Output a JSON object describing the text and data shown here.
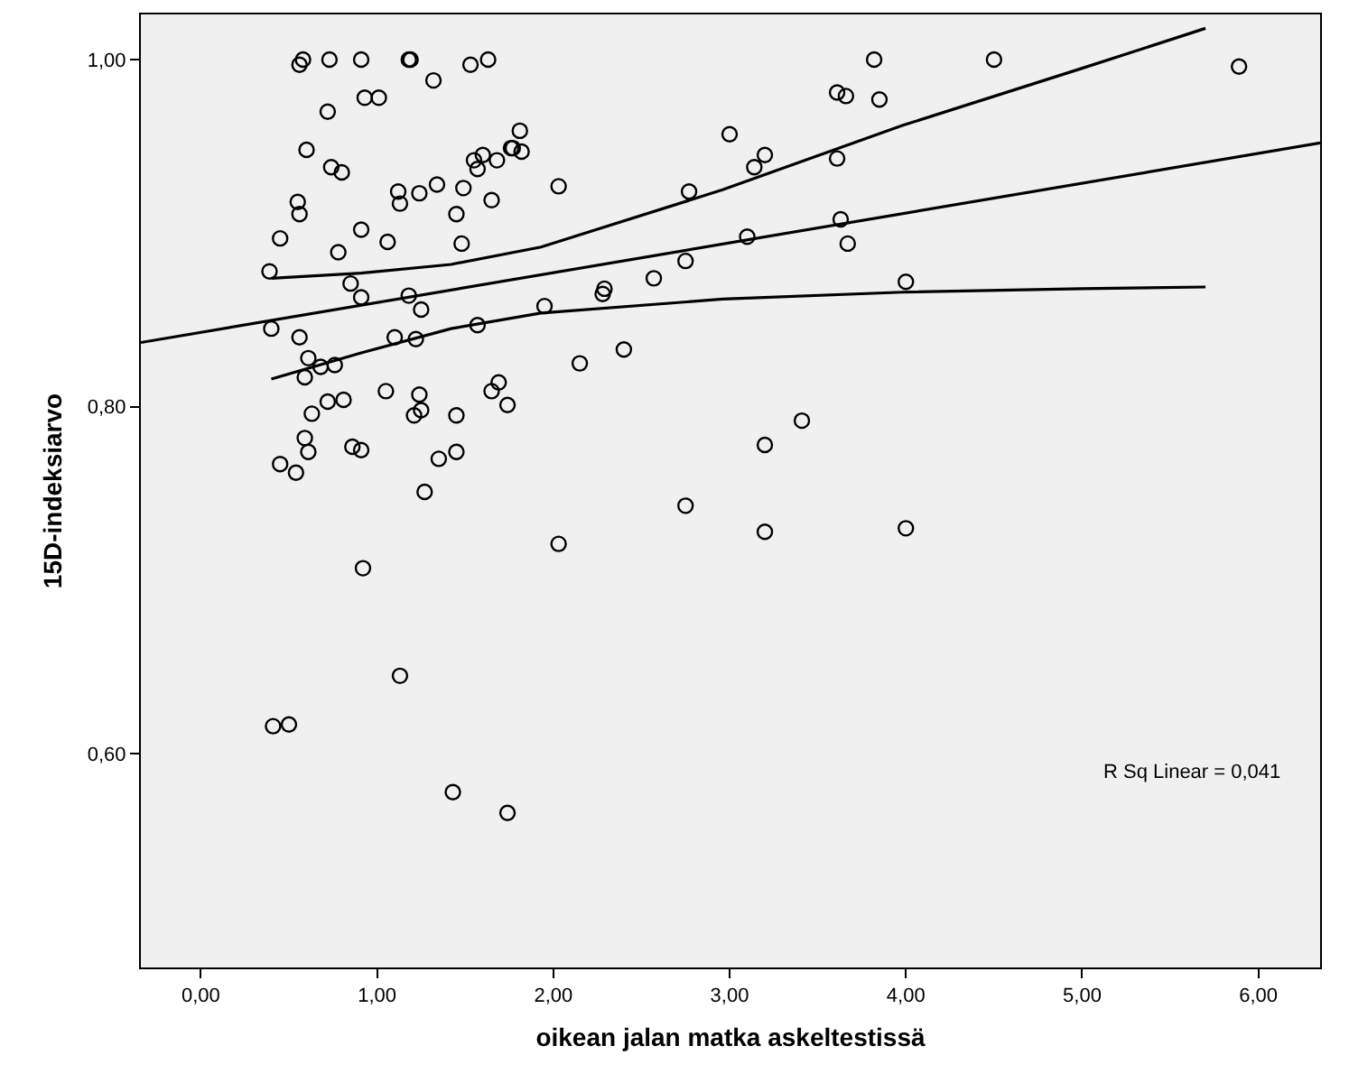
{
  "chart_data": {
    "type": "scatter",
    "xlabel": "oikean jalan matka askeltestissä",
    "ylabel": "15D-indeksiarvo",
    "annotations": [
      "R Sq Linear = 0,041"
    ],
    "xlim": [
      -0.34,
      6.35
    ],
    "ylim": [
      0.477,
      1.026
    ],
    "xticks": [
      {
        "value": 0,
        "label": "0,00"
      },
      {
        "value": 1,
        "label": "1,00"
      },
      {
        "value": 2,
        "label": "2,00"
      },
      {
        "value": 3,
        "label": "3,00"
      },
      {
        "value": 4,
        "label": "4,00"
      },
      {
        "value": 5,
        "label": "5,00"
      },
      {
        "value": 6,
        "label": "6,00"
      }
    ],
    "yticks": [
      {
        "value": 0.6,
        "label": "0,60"
      },
      {
        "value": 0.8,
        "label": "0,80"
      },
      {
        "value": 1.0,
        "label": "1,00"
      }
    ],
    "grid": false,
    "series": [
      {
        "color": "#000000",
        "marker": "circle",
        "x": [
          0.58,
          0.56,
          0.73,
          0.91,
          1.18,
          1.19,
          1.53,
          1.63,
          1.32,
          0.93,
          1.01,
          0.72,
          0.6,
          0.74,
          0.8,
          1.81,
          1.76,
          1.77,
          1.82,
          1.68,
          1.6,
          1.55,
          1.57,
          2.03,
          1.12,
          1.13,
          1.24,
          1.34,
          1.49,
          1.65,
          1.45,
          0.55,
          0.56,
          0.45,
          0.91,
          0.78,
          1.06,
          1.48,
          0.39,
          0.85,
          0.91,
          1.18,
          1.25,
          1.95,
          0.4,
          0.56,
          1.1,
          1.22,
          1.57,
          2.15,
          0.61,
          0.68,
          0.76,
          0.59,
          1.05,
          1.24,
          1.25,
          1.21,
          1.45,
          1.69,
          1.65,
          1.74,
          0.81,
          0.72,
          0.63,
          0.59,
          0.61,
          0.45,
          0.54,
          0.86,
          0.91,
          1.35,
          1.45,
          1.27,
          2.03,
          0.92,
          1.13,
          0.41,
          0.5,
          1.43,
          1.74,
          2.77,
          3.0,
          3.14,
          3.2,
          3.61,
          3.66,
          3.82,
          3.85,
          4.5,
          5.89,
          3.61,
          3.63,
          3.67,
          3.1,
          2.75,
          2.57,
          2.29,
          2.28,
          4.0,
          2.4,
          3.41,
          3.2,
          2.75,
          3.2,
          4.0
        ],
        "values": [
          1.0,
          0.997,
          1.0,
          1.0,
          1.0,
          1.0,
          0.997,
          1.0,
          0.988,
          0.978,
          0.978,
          0.97,
          0.948,
          0.938,
          0.935,
          0.959,
          0.949,
          0.949,
          0.947,
          0.942,
          0.945,
          0.942,
          0.937,
          0.927,
          0.924,
          0.917,
          0.923,
          0.928,
          0.926,
          0.919,
          0.911,
          0.918,
          0.911,
          0.897,
          0.902,
          0.889,
          0.895,
          0.894,
          0.878,
          0.871,
          0.863,
          0.864,
          0.856,
          0.858,
          0.845,
          0.84,
          0.84,
          0.839,
          0.847,
          0.825,
          0.828,
          0.823,
          0.824,
          0.817,
          0.809,
          0.807,
          0.798,
          0.795,
          0.795,
          0.814,
          0.809,
          0.801,
          0.804,
          0.803,
          0.796,
          0.782,
          0.774,
          0.767,
          0.762,
          0.777,
          0.775,
          0.77,
          0.774,
          0.751,
          0.721,
          0.707,
          0.645,
          0.616,
          0.617,
          0.578,
          0.566,
          0.924,
          0.957,
          0.938,
          0.945,
          0.981,
          0.979,
          1.0,
          0.977,
          1.0,
          0.996,
          0.943,
          0.908,
          0.894,
          0.898,
          0.884,
          0.874,
          0.868,
          0.865,
          0.872,
          0.833,
          0.792,
          0.778,
          0.743,
          0.728,
          0.73
        ]
      },
      {
        "type": "line",
        "color": "#000000",
        "marker": "none",
        "x": [
          -0.34,
          6.35
        ],
        "values": [
          0.837,
          0.952
        ]
      },
      {
        "type": "line",
        "color": "#000000",
        "marker": "none",
        "x": [
          0.4,
          0.91,
          1.42,
          1.93,
          2.96,
          3.98,
          5.0,
          5.7
        ],
        "values": [
          0.874,
          0.877,
          0.882,
          0.892,
          0.925,
          0.962,
          0.995,
          1.018
        ]
      },
      {
        "type": "line",
        "color": "#000000",
        "marker": "none",
        "x": [
          0.4,
          0.91,
          1.42,
          1.93,
          2.96,
          3.98,
          5.0,
          5.7
        ],
        "values": [
          0.816,
          0.831,
          0.845,
          0.854,
          0.862,
          0.866,
          0.868,
          0.869
        ]
      }
    ]
  }
}
